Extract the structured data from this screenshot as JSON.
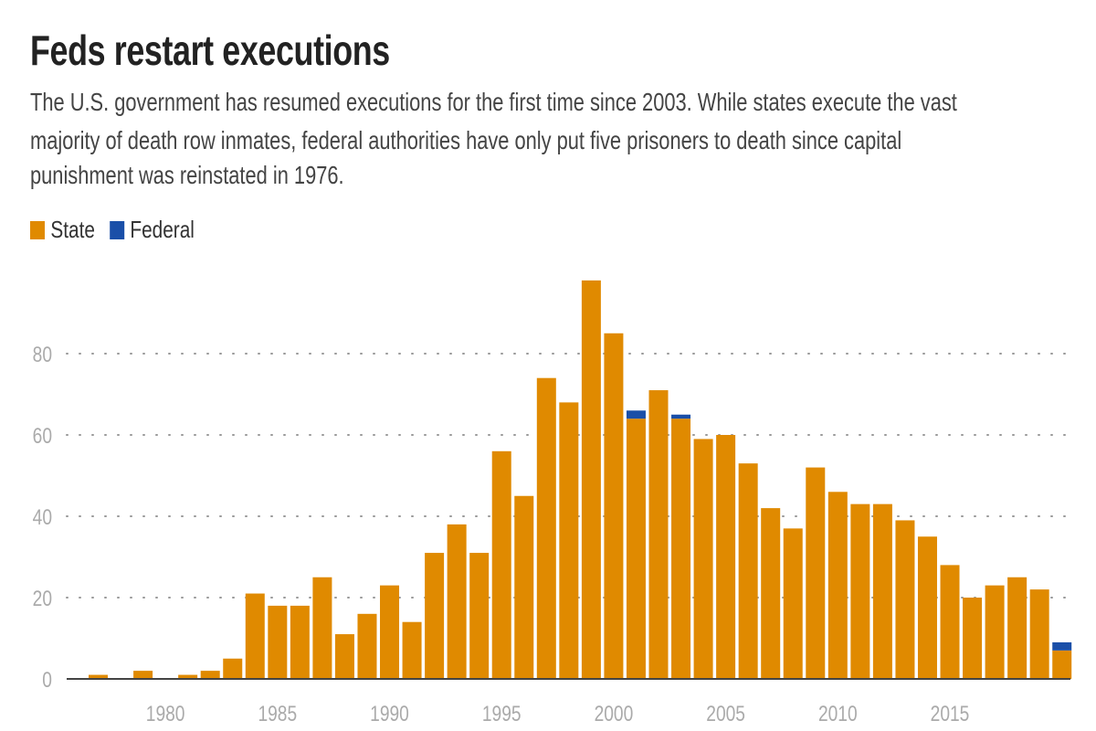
{
  "title": "Feds restart executions",
  "subtitle_lines": [
    "The U.S. government has resumed executions for the first time since 2003. While states execute the vast",
    "majority of death row inmates, federal authorities have only put five prisoners to death since capital",
    "punishment was reinstated in 1976."
  ],
  "chart_data": {
    "type": "bar",
    "stacked": true,
    "legend": "top-left",
    "grid": "horizontal dotted",
    "ylim": [
      0,
      100
    ],
    "yticks": [
      0,
      20,
      40,
      60,
      80
    ],
    "xticks": [
      1980,
      1985,
      1990,
      1995,
      2000,
      2005,
      2010,
      2015
    ],
    "categories": [
      1976,
      1977,
      1978,
      1979,
      1980,
      1981,
      1982,
      1983,
      1984,
      1985,
      1986,
      1987,
      1988,
      1989,
      1990,
      1991,
      1992,
      1993,
      1994,
      1995,
      1996,
      1997,
      1998,
      1999,
      2000,
      2001,
      2002,
      2003,
      2004,
      2005,
      2006,
      2007,
      2008,
      2009,
      2010,
      2011,
      2012,
      2013,
      2014,
      2015,
      2016,
      2017,
      2018,
      2019,
      2020
    ],
    "series": [
      {
        "name": "State",
        "color": "#e08a00",
        "values": [
          0,
          1,
          0,
          2,
          0,
          1,
          2,
          5,
          21,
          18,
          18,
          25,
          11,
          16,
          23,
          14,
          31,
          38,
          31,
          56,
          45,
          74,
          68,
          98,
          85,
          64,
          71,
          64,
          59,
          60,
          53,
          42,
          37,
          52,
          46,
          43,
          43,
          39,
          35,
          28,
          20,
          23,
          25,
          22,
          7
        ]
      },
      {
        "name": "Federal",
        "color": "#1a4fa8",
        "values": [
          0,
          0,
          0,
          0,
          0,
          0,
          0,
          0,
          0,
          0,
          0,
          0,
          0,
          0,
          0,
          0,
          0,
          0,
          0,
          0,
          0,
          0,
          0,
          0,
          0,
          2,
          0,
          1,
          0,
          0,
          0,
          0,
          0,
          0,
          0,
          0,
          0,
          0,
          0,
          0,
          0,
          0,
          0,
          0,
          2
        ]
      }
    ]
  }
}
